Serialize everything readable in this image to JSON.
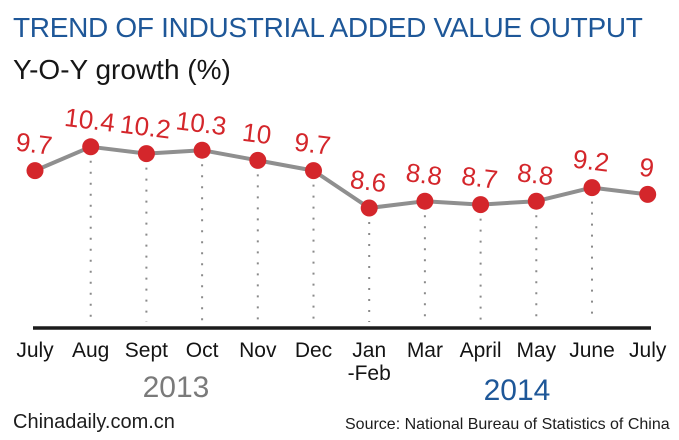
{
  "header": {
    "title": "TREND OF INDUSTRIAL ADDED VALUE OUTPUT",
    "subtitle": "Y-O-Y growth (%)"
  },
  "chart_data": {
    "type": "line",
    "title": "TREND OF INDUSTRIAL ADDED VALUE OUTPUT",
    "ylabel": "Y-O-Y growth (%)",
    "xlabel": "",
    "categories": [
      "July",
      "Aug",
      "Sept",
      "Oct",
      "Nov",
      "Dec",
      "Jan\n-Feb",
      "Mar",
      "April",
      "May",
      "June",
      "July"
    ],
    "values": [
      9.7,
      10.4,
      10.2,
      10.3,
      10,
      9.7,
      8.6,
      8.8,
      8.7,
      8.8,
      9.2,
      9
    ],
    "value_labels": [
      "9.7",
      "10.4",
      "10.2",
      "10.3",
      "10",
      "9.7",
      "8.6",
      "8.8",
      "8.7",
      "8.8",
      "9.2",
      "9"
    ],
    "ylim": [
      8.0,
      11.0
    ],
    "legend": "none",
    "grid": "dotted vertical guides under interior points only",
    "year_groups": [
      {
        "label": "2013",
        "span": [
          "July",
          "Dec"
        ],
        "color": "#7a7a7a"
      },
      {
        "label": "2014",
        "span": [
          "Jan-Feb",
          "July"
        ],
        "color": "#1e5798"
      }
    ],
    "colors": {
      "title": "#1e5798",
      "point": "#d4262b",
      "value_label": "#d4262b",
      "line": "#8f8f8f",
      "guide": "#8a8a8a",
      "axis": "#1c1c1c",
      "month_label": "#141414"
    }
  },
  "footer": {
    "brand": "Chinadaily.com.cn",
    "source": "Source: National Bureau of Statistics of China"
  }
}
